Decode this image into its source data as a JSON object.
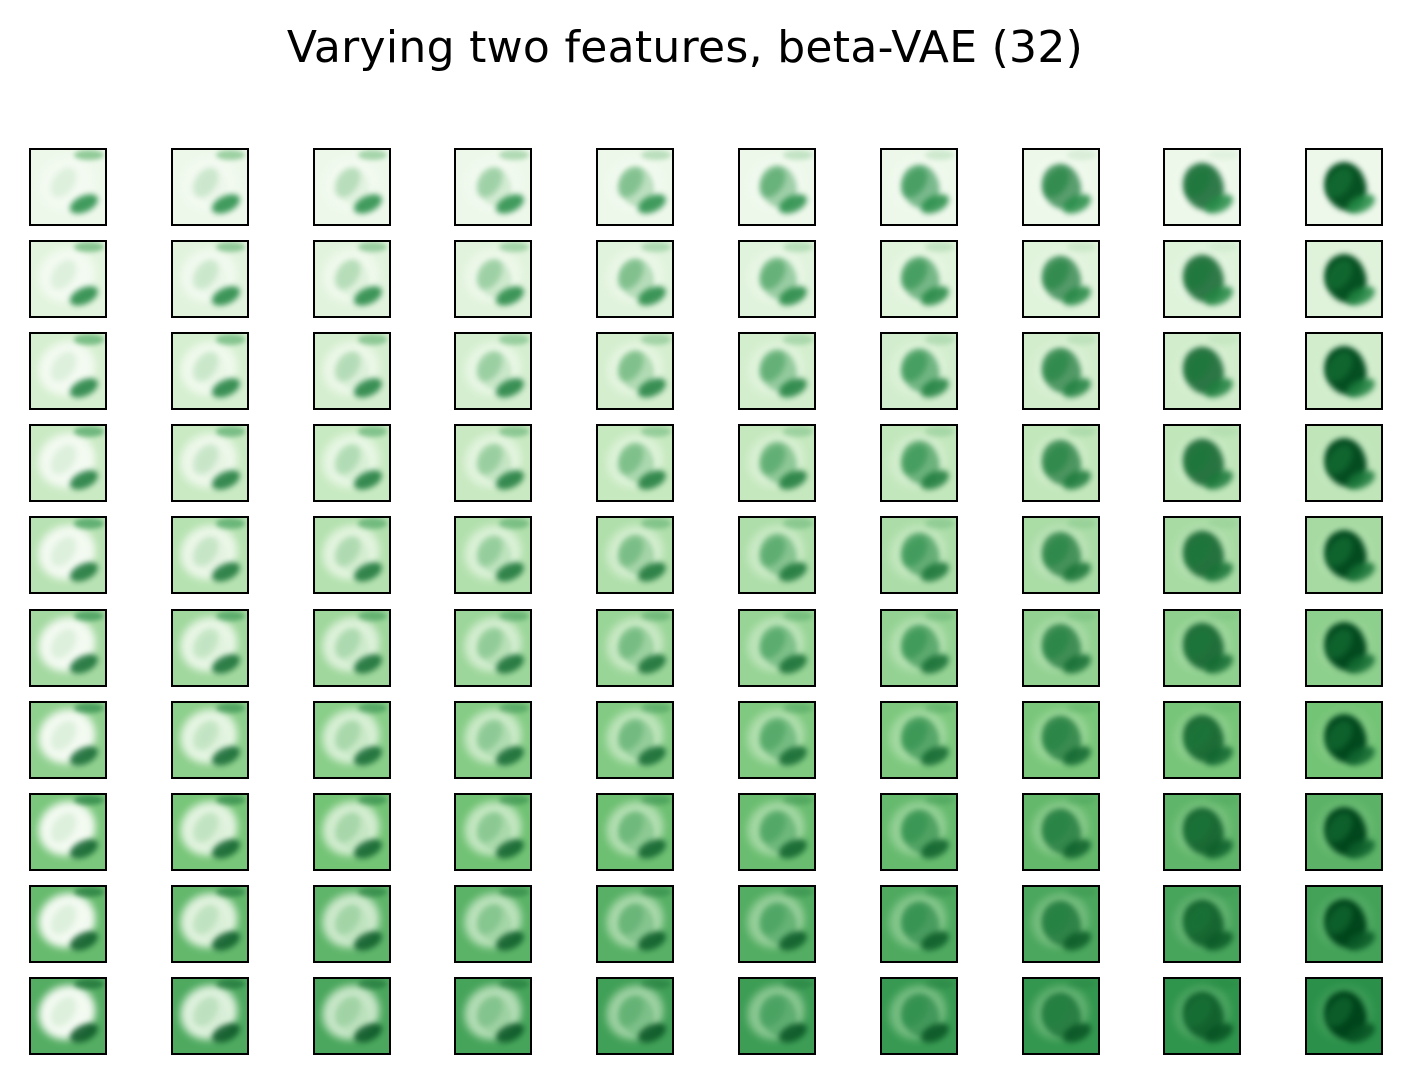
{
  "title": "Varying two features, beta-VAE (32)",
  "grid": {
    "rows": 10,
    "cols": 10
  },
  "colors": {
    "colormap": "Greens",
    "lightest": "#f7fcf5",
    "darkest": "#00441b",
    "border": "#000000"
  }
}
